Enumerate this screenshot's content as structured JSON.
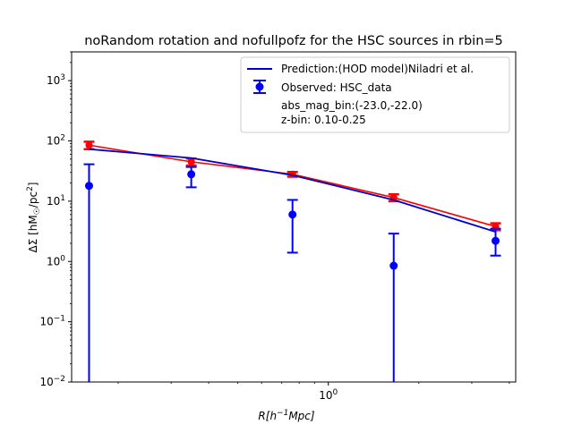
{
  "chart_data": {
    "type": "scatter",
    "title": "noRandom rotation and nofullpofz for the HSC sources in rbin=5",
    "xlabel_main": "R[h",
    "xlabel_sup": "−1",
    "xlabel_tail": "Mpc]",
    "ylabel_main": "ΔΣ [hM",
    "ylabel_sub": "☉",
    "ylabel_mid": "/pc",
    "ylabel_sup": "2",
    "ylabel_tail": "]",
    "xscale": "log",
    "yscale": "log",
    "xlim": [
      0.14,
      4.2
    ],
    "ylim": [
      0.01,
      3000
    ],
    "x_ticks": [
      {
        "value": 1,
        "base": "10",
        "exp": "0"
      }
    ],
    "y_ticks": [
      {
        "value": 0.01,
        "base": "10",
        "exp": "−2"
      },
      {
        "value": 0.1,
        "base": "10",
        "exp": "−1"
      },
      {
        "value": 1,
        "base": "10",
        "exp": "0"
      },
      {
        "value": 10,
        "base": "10",
        "exp": "1"
      },
      {
        "value": 100,
        "base": "10",
        "exp": "2"
      },
      {
        "value": 1000,
        "base": "10",
        "exp": "3"
      }
    ],
    "legend_position": "top-right",
    "legend": {
      "prediction_label": "Prediction:(HOD model)Niladri et al.",
      "observed_label": "Observed: HSC_data",
      "note1": "abs_mag_bin:(-23.0,-22.0)",
      "note2": "z-bin: 0.10-0.25"
    },
    "series": [
      {
        "name": "Prediction:(HOD model)Niladri et al.",
        "kind": "line",
        "color": "#0000cc",
        "x": [
          0.16,
          0.35,
          0.76,
          1.65,
          3.6
        ],
        "y": [
          73,
          52,
          27,
          10.5,
          3.1
        ]
      },
      {
        "kind": "line-errorbar",
        "color": "#ff0000",
        "x": [
          0.16,
          0.35,
          0.76,
          1.65,
          3.6
        ],
        "y": [
          85,
          45,
          28,
          11.5,
          3.8
        ],
        "yerr_low": [
          73,
          39,
          25.5,
          10,
          3.3
        ],
        "yerr_high": [
          97,
          51,
          30.5,
          13,
          4.3
        ]
      },
      {
        "name": "Observed: HSC_data",
        "kind": "errorbar",
        "color": "#0000ff",
        "x": [
          0.16,
          0.35,
          0.76,
          1.65,
          3.6
        ],
        "y": [
          18,
          28,
          6,
          0.85,
          2.2
        ],
        "yerr_low": [
          0.008,
          17,
          1.4,
          0.008,
          1.25
        ],
        "yerr_high": [
          41,
          37,
          10.5,
          2.9,
          3.5
        ]
      }
    ]
  }
}
